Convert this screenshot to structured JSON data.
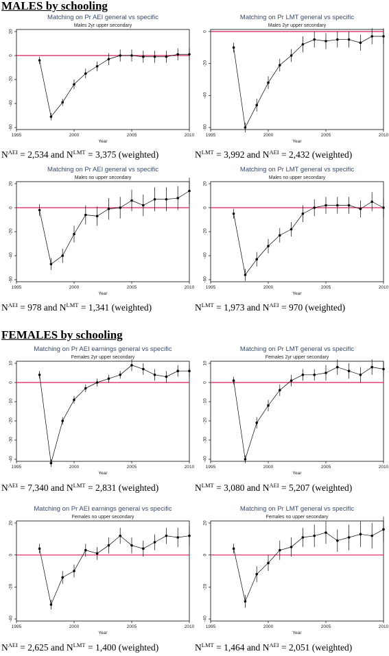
{
  "headings": {
    "males": "MALES by schooling",
    "females": "FEMALES by schooling"
  },
  "colors": {
    "reference_line": "#d81b60",
    "series": "#000000",
    "frame": "#000000"
  },
  "chart_data": [
    {
      "type": "line",
      "title": "Matching on Pr AEI general vs specific",
      "subtitle": "Males 2yr upper secondary",
      "xlabel": "Year",
      "xlim": [
        1995,
        2010
      ],
      "ylim": [
        -60,
        20
      ],
      "xticks": [
        1995,
        2000,
        2005,
        2010
      ],
      "yticks": [
        20,
        0,
        -20,
        -40,
        -60
      ],
      "reference_line_y": 0,
      "x": [
        1997,
        1998,
        1999,
        2000,
        2001,
        2002,
        2003,
        2004,
        2005,
        2006,
        2007,
        2008,
        2009,
        2010
      ],
      "values": [
        -4,
        -51,
        -39,
        -24,
        -15,
        -9,
        -3,
        0,
        0,
        -1,
        -1,
        -1,
        1,
        1
      ],
      "ci_half_width": [
        3,
        3,
        3,
        4,
        4,
        4,
        5,
        5,
        5,
        5,
        5,
        5,
        5,
        5
      ],
      "caption": {
        "a": "N",
        "a_sup": "AEI",
        "a_val": " = 2,534 and ",
        "b": "N",
        "b_sup": "LMT",
        "b_val": " = 3,375 (weighted)"
      }
    },
    {
      "type": "line",
      "title": "Matching on Pr LMT general vs specific",
      "subtitle": "Males 2yr upper secondary",
      "xlabel": "Year",
      "xlim": [
        1995,
        2010
      ],
      "ylim": [
        -60,
        0
      ],
      "xticks": [
        1995,
        2000,
        2005,
        2010
      ],
      "yticks": [
        0,
        -20,
        -40,
        -60
      ],
      "reference_line_y": 0,
      "x": [
        1997,
        1998,
        1999,
        2000,
        2001,
        2002,
        2003,
        2004,
        2005,
        2006,
        2007,
        2008,
        2009,
        2010
      ],
      "values": [
        -10,
        -60,
        -46,
        -32,
        -21,
        -15,
        -8,
        -5,
        -6,
        -5,
        -5,
        -7,
        -3,
        -3
      ],
      "ci_half_width": [
        3,
        3,
        4,
        4,
        4,
        4,
        5,
        5,
        5,
        5,
        5,
        5,
        5,
        5
      ],
      "caption": {
        "a": "N",
        "a_sup": "LMT",
        "a_val": " = 3,992 and ",
        "b": "N",
        "b_sup": "AEI",
        "b_val": " = 2,432 (weighted)"
      }
    },
    {
      "type": "line",
      "title": "Matching on Pr AEI general vs specific",
      "subtitle": "Males no upper secondary",
      "xlabel": "Year",
      "xlim": [
        1995,
        2010
      ],
      "ylim": [
        -60,
        20
      ],
      "xticks": [
        1995,
        2000,
        2005,
        2010
      ],
      "yticks": [
        20,
        0,
        -20,
        -40,
        -60
      ],
      "reference_line_y": 0,
      "x": [
        1997,
        1998,
        1999,
        2000,
        2001,
        2002,
        2003,
        2004,
        2005,
        2006,
        2007,
        2008,
        2009,
        2010
      ],
      "values": [
        -2,
        -47,
        -40,
        -22,
        -6,
        -7,
        -1,
        0,
        6,
        2,
        7,
        7,
        8,
        14
      ],
      "ci_half_width": [
        5,
        5,
        6,
        7,
        8,
        8,
        9,
        9,
        9,
        9,
        10,
        10,
        10,
        11
      ],
      "caption": {
        "a": "N",
        "a_sup": "AEI",
        "a_val": " = 978 and ",
        "b": "N",
        "b_sup": "LMT",
        "b_val": " = 1,341 (weighted)"
      }
    },
    {
      "type": "line",
      "title": "Matching on Pr LMT general vs specific",
      "subtitle": "Males no upper secondary",
      "xlabel": "Year",
      "xlim": [
        1995,
        2010
      ],
      "ylim": [
        -60,
        20
      ],
      "xticks": [
        1995,
        2000,
        2005,
        2010
      ],
      "yticks": [
        20,
        0,
        -20,
        -40,
        -60
      ],
      "reference_line_y": 0,
      "x": [
        1997,
        1998,
        1999,
        2000,
        2001,
        2002,
        2003,
        2004,
        2005,
        2006,
        2007,
        2008,
        2009,
        2010
      ],
      "values": [
        -5,
        -56,
        -43,
        -32,
        -23,
        -18,
        -5,
        0,
        2,
        2,
        2,
        -1,
        5,
        0
      ],
      "ci_half_width": [
        4,
        5,
        6,
        6,
        6,
        6,
        7,
        7,
        7,
        7,
        7,
        7,
        8,
        8
      ],
      "caption": {
        "a": "N",
        "a_sup": "LMT",
        "a_val": " = 1,973 and ",
        "b": "N",
        "b_sup": "AEI",
        "b_val": " = 970 (weighted)"
      }
    },
    {
      "type": "line",
      "title": "Matching on Pr AEI earnings general vs specific",
      "subtitle": "Females 2yr upper secondary",
      "xlabel": "Year",
      "xlim": [
        1995,
        2010
      ],
      "ylim": [
        -40,
        10
      ],
      "xticks": [
        1995,
        2000,
        2005,
        2010
      ],
      "yticks": [
        10,
        0,
        -10,
        -20,
        -30,
        -40
      ],
      "reference_line_y": 0,
      "x": [
        1997,
        1998,
        1999,
        2000,
        2001,
        2002,
        2003,
        2004,
        2005,
        2006,
        2007,
        2008,
        2009,
        2010
      ],
      "values": [
        4,
        -42,
        -20,
        -9,
        -3,
        0,
        2,
        4,
        9,
        7,
        4,
        3,
        6,
        6
      ],
      "ci_half_width": [
        2,
        2,
        2,
        2,
        2,
        2,
        2,
        2,
        3,
        3,
        3,
        3,
        3,
        3
      ],
      "caption": {
        "a": "N",
        "a_sup": "AEI",
        "a_val": " = 7,340 and ",
        "b": "N",
        "b_sup": "LMT",
        "b_val": " = 2,831 (weighted)"
      }
    },
    {
      "type": "line",
      "title": "Matching on Pr LMT general vs specific",
      "subtitle": "Females 2yr upper secondary",
      "xlabel": "Year",
      "xlim": [
        1995,
        2010
      ],
      "ylim": [
        -40,
        10
      ],
      "xticks": [
        1995,
        2000,
        2005,
        2010
      ],
      "yticks": [
        10,
        0,
        -10,
        -20,
        -30,
        -40
      ],
      "reference_line_y": 0,
      "x": [
        1997,
        1998,
        1999,
        2000,
        2001,
        2002,
        2003,
        2004,
        2005,
        2006,
        2007,
        2008,
        2009,
        2010
      ],
      "values": [
        1,
        -40,
        -21,
        -12,
        -4,
        1,
        4,
        4,
        5,
        8,
        6,
        4,
        8,
        7
      ],
      "ci_half_width": [
        2,
        2,
        3,
        3,
        3,
        3,
        3,
        3,
        4,
        4,
        4,
        4,
        4,
        4
      ],
      "caption": {
        "a": "N",
        "a_sup": "LMT",
        "a_val": " = 3,080 and ",
        "b": "N",
        "b_sup": "AEI",
        "b_val": " = 5,207 (weighted)"
      }
    },
    {
      "type": "line",
      "title": "Matching on Pr AEI earnings general vs specific",
      "subtitle": "Females no upper secondary",
      "xlabel": "Year",
      "xlim": [
        1995,
        2010
      ],
      "ylim": [
        -40,
        20
      ],
      "xticks": [
        1995,
        2000,
        2005,
        2010
      ],
      "yticks": [
        20,
        0,
        -20,
        -40
      ],
      "reference_line_y": 0,
      "x": [
        1997,
        1998,
        1999,
        2000,
        2001,
        2002,
        2003,
        2004,
        2005,
        2006,
        2007,
        2008,
        2009,
        2010
      ],
      "values": [
        4,
        -31,
        -14,
        -10,
        3,
        1,
        6,
        12,
        6,
        4,
        8,
        12,
        11,
        12
      ],
      "ci_half_width": [
        3,
        3,
        4,
        4,
        4,
        4,
        5,
        5,
        5,
        5,
        5,
        5,
        6,
        6
      ],
      "caption": {
        "a": "N",
        "a_sup": "AEI",
        "a_val": " = 2,625 and ",
        "b": "N",
        "b_sup": "LMT",
        "b_val": " = 1,400 (weighted)"
      }
    },
    {
      "type": "line",
      "title": "Matching on Pr LMT general vs specific",
      "subtitle": "Females no upper secondary",
      "xlabel": "Year",
      "xlim": [
        1995,
        2010
      ],
      "ylim": [
        -40,
        20
      ],
      "xticks": [
        1995,
        2000,
        2005,
        2010
      ],
      "yticks": [
        20,
        0,
        -20,
        -40
      ],
      "reference_line_y": 0,
      "x": [
        1997,
        1998,
        1999,
        2000,
        2001,
        2002,
        2003,
        2004,
        2005,
        2006,
        2007,
        2008,
        2009,
        2010
      ],
      "values": [
        4,
        -29,
        -12,
        -5,
        3,
        5,
        11,
        12,
        14,
        9,
        11,
        13,
        12,
        16
      ],
      "ci_half_width": [
        3,
        4,
        5,
        5,
        6,
        6,
        6,
        7,
        7,
        7,
        8,
        8,
        8,
        8
      ],
      "caption": {
        "a": "N",
        "a_sup": "LMT",
        "a_val": " = 1,464 and ",
        "b": "N",
        "b_sup": "AEI",
        "b_val": " = 2,051 (weighted)"
      }
    }
  ]
}
